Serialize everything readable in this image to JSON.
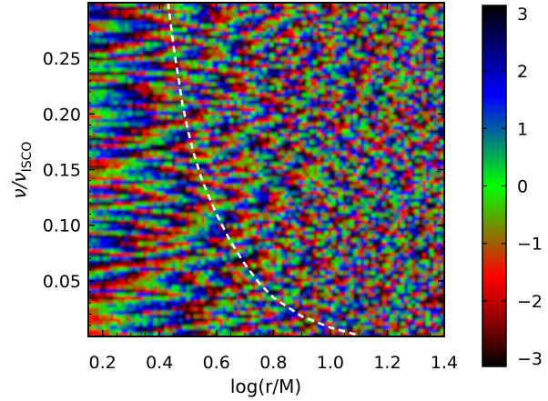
{
  "chart_data": {
    "type": "heatmap",
    "title": "",
    "xlabel": "log(r/M)",
    "ylabel": "ν/ν_ISCO",
    "ylabel_main": "ν/ν",
    "ylabel_sub": "ISCO",
    "xlim": [
      0.15,
      1.4
    ],
    "ylim": [
      0.0,
      0.3
    ],
    "x_ticks": [
      0.2,
      0.4,
      0.6,
      0.8,
      1.0,
      1.2,
      1.4
    ],
    "x_tick_labels": [
      "0.2",
      "0.4",
      "0.6",
      "0.8",
      "1.0",
      "1.2",
      "1.4"
    ],
    "y_ticks": [
      0.05,
      0.1,
      0.15,
      0.2,
      0.25
    ],
    "y_tick_labels": [
      "0.05",
      "0.10",
      "0.15",
      "0.20",
      "0.25"
    ],
    "colorbar": {
      "range": [
        -3.14,
        3.14
      ],
      "ticks": [
        -3,
        -2,
        -1,
        0,
        1,
        2,
        3
      ],
      "tick_labels": [
        "−3",
        "−2",
        "−1",
        "0",
        "1",
        "2",
        "3"
      ],
      "colors": [
        "#000000",
        "#8b0000",
        "#ff0000",
        "#808000",
        "#00ff00",
        "#008080",
        "#0000ff",
        "#000080",
        "#000000"
      ]
    },
    "overlay_curve": {
      "style": "dashed",
      "color": "#ffffff",
      "x": [
        0.43,
        0.45,
        0.48,
        0.5,
        0.52,
        0.55,
        0.6,
        0.65,
        0.7,
        0.75,
        0.8,
        0.9,
        1.0,
        1.1
      ],
      "y": [
        0.3,
        0.26,
        0.21,
        0.185,
        0.165,
        0.14,
        0.11,
        0.085,
        0.065,
        0.048,
        0.035,
        0.018,
        0.008,
        0.001
      ]
    },
    "grid": false,
    "legend": "colorbar-right"
  }
}
